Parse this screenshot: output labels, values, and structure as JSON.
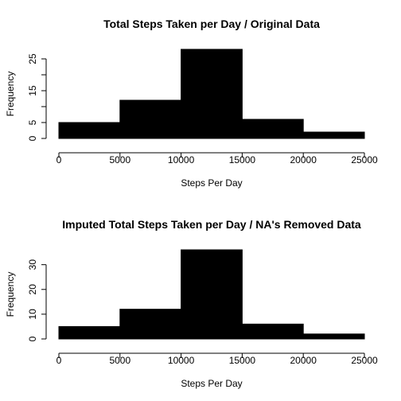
{
  "chart_data": [
    {
      "type": "bar",
      "title": "Total Steps Taken per Day / Original Data",
      "xlabel": "Steps Per Day",
      "ylabel": "Frequency",
      "bins": [
        {
          "from": 0,
          "to": 5000,
          "count": 5
        },
        {
          "from": 5000,
          "to": 10000,
          "count": 12
        },
        {
          "from": 10000,
          "to": 15000,
          "count": 28
        },
        {
          "from": 15000,
          "to": 20000,
          "count": 6
        },
        {
          "from": 20000,
          "to": 25000,
          "count": 2
        }
      ],
      "xlim": [
        0,
        25000
      ],
      "ylim": [
        0,
        28
      ],
      "x_ticks": [
        "0",
        "5000",
        "10000",
        "15000",
        "20000",
        "25000"
      ],
      "y_ticks": [
        "0",
        "5",
        "15",
        "25"
      ],
      "grid": false
    },
    {
      "type": "bar",
      "title": "Imputed Total Steps Taken per Day / NA's Removed Data",
      "xlabel": "Steps Per Day",
      "ylabel": "Frequency",
      "bins": [
        {
          "from": 0,
          "to": 5000,
          "count": 5
        },
        {
          "from": 5000,
          "to": 10000,
          "count": 12
        },
        {
          "from": 10000,
          "to": 15000,
          "count": 36
        },
        {
          "from": 15000,
          "to": 20000,
          "count": 6
        },
        {
          "from": 20000,
          "to": 25000,
          "count": 2
        }
      ],
      "xlim": [
        0,
        25000
      ],
      "ylim": [
        0,
        36
      ],
      "x_ticks": [
        "0",
        "5000",
        "10000",
        "15000",
        "20000",
        "25000"
      ],
      "y_ticks": [
        "0",
        "10",
        "20",
        "30"
      ],
      "grid": false
    }
  ]
}
